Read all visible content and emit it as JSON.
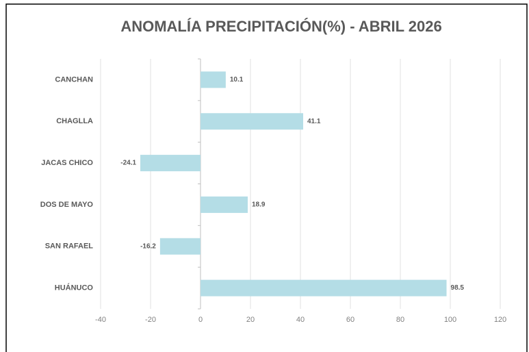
{
  "chart_data": {
    "type": "barh",
    "title": "ANOMALÍA PRECIPITACIÓN(%) - ABRIL 2026",
    "categories": [
      "CANCHAN",
      "CHAGLLA",
      "JACAS CHICO",
      "DOS DE MAYO",
      "SAN RAFAEL",
      "HUÁNUCO"
    ],
    "values": [
      10.1,
      41.1,
      -24.1,
      18.9,
      -16.2,
      98.5
    ],
    "color": "#b4dde6",
    "xlim": [
      -40,
      120
    ],
    "xticks": [
      -40,
      -20,
      0,
      20,
      40,
      60,
      80,
      100,
      120
    ],
    "grid": true
  }
}
